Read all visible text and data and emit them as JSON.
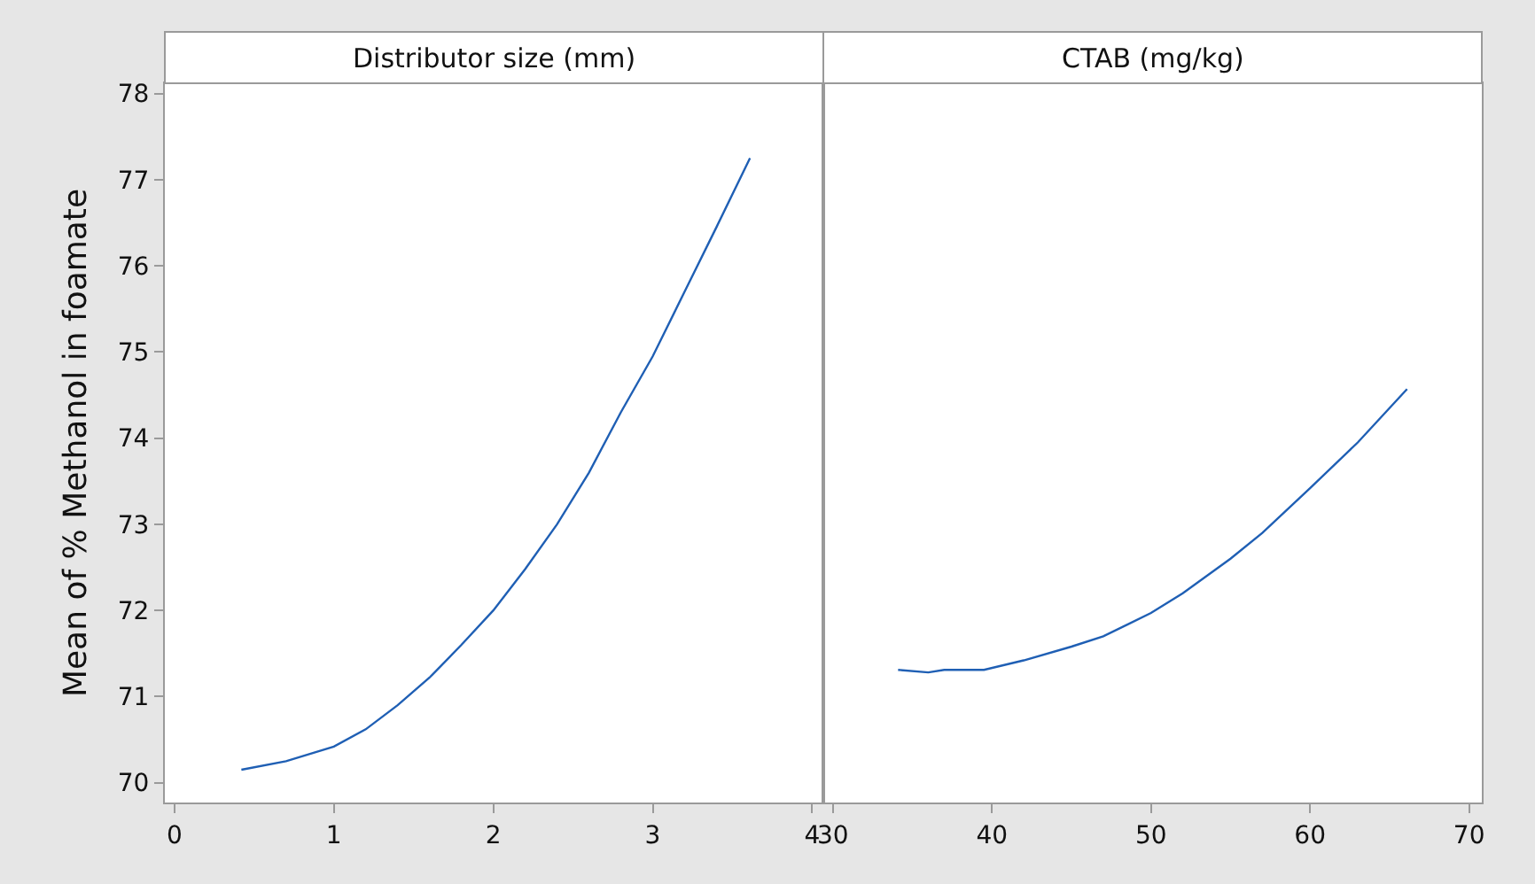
{
  "chart_data": [
    {
      "type": "line",
      "title": "Distributor size (mm)",
      "ylabel": "Mean of % Methanol in foamate",
      "x": [
        0.42,
        0.7,
        1.0,
        1.2,
        1.4,
        1.6,
        1.8,
        2.0,
        2.2,
        2.4,
        2.6,
        2.8,
        3.0,
        3.2,
        3.4,
        3.61
      ],
      "series": [
        {
          "color": "#1f5fb4",
          "values": [
            70.15,
            70.25,
            70.42,
            70.62,
            70.9,
            71.22,
            71.6,
            72.0,
            72.48,
            73.0,
            73.6,
            74.3,
            74.95,
            75.7,
            76.45,
            77.25
          ]
        }
      ],
      "xlim": [
        -0.06,
        4.07
      ],
      "xticks": [
        0,
        1,
        2,
        3,
        4
      ],
      "ylim": [
        69.77,
        78.12
      ],
      "yticks": [
        70,
        71,
        72,
        73,
        74,
        75,
        76,
        77,
        78
      ]
    },
    {
      "type": "line",
      "title": "CTAB (mg/kg)",
      "x": [
        34.1,
        36,
        37,
        39.5,
        42,
        45,
        47,
        50,
        52,
        55,
        57,
        60,
        63,
        66.1
      ],
      "series": [
        {
          "color": "#1f5fb4",
          "values": [
            71.31,
            71.28,
            71.31,
            71.31,
            71.42,
            71.58,
            71.7,
            71.97,
            72.2,
            72.6,
            72.9,
            73.42,
            73.95,
            74.57
          ]
        }
      ],
      "xlim": [
        29.4,
        70.8
      ],
      "xticks": [
        30,
        40,
        50,
        60,
        70
      ],
      "ylim": [
        69.77,
        78.12
      ],
      "tick_labels": "x"
    }
  ]
}
